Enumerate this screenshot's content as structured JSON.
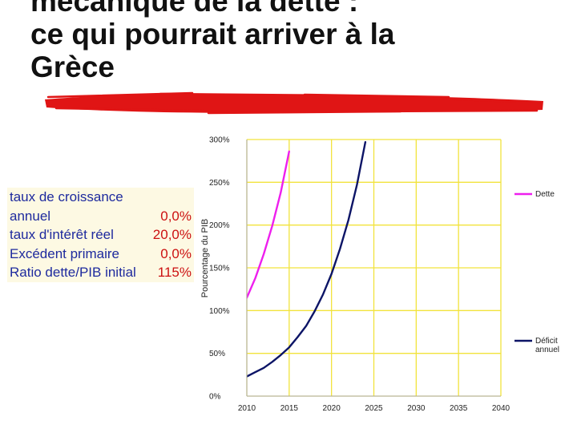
{
  "title": {
    "line1": "mécanique de la dette :",
    "line2": "ce qui pourrait arriver à la",
    "line3": "Grèce"
  },
  "colors": {
    "title": "#111111",
    "brush_stroke": "#e01515",
    "table_background": "#fdf9e3",
    "table_label": "#1e2a9e",
    "table_value": "#cc1111",
    "grid": "#f2e33c",
    "debt_series": "#ee1fee",
    "deficit_series": "#0c1466"
  },
  "parameters": [
    {
      "label_lines": [
        "taux de croissance",
        "annuel"
      ],
      "value": "0,0%"
    },
    {
      "label_lines": [
        "taux d'intérêt réel"
      ],
      "value": "20,0%"
    },
    {
      "label_lines": [
        "Excédent primaire"
      ],
      "value": "0,0%"
    },
    {
      "label_lines": [
        "Ratio dette/PIB initial"
      ],
      "value": "115%"
    }
  ],
  "chart_data": {
    "type": "line",
    "ylabel": "Pourcentage du PIB",
    "xlim": [
      2010,
      2040
    ],
    "ylim": [
      0,
      300
    ],
    "x_ticks": [
      2010,
      2015,
      2020,
      2025,
      2030,
      2035,
      2040
    ],
    "y_ticks": [
      0,
      50,
      100,
      150,
      200,
      250,
      300
    ],
    "y_tick_labels": [
      "0%",
      "50%",
      "100%",
      "150%",
      "200%",
      "250%",
      "300%"
    ],
    "grid": true,
    "legend_position": "right",
    "series": [
      {
        "name": "Dette",
        "color": "#ee1fee",
        "x": [
          2010,
          2011,
          2012,
          2013,
          2014,
          2015
        ],
        "y": [
          115,
          138,
          166,
          199,
          238,
          286
        ]
      },
      {
        "name": "Déficit annuel",
        "color": "#0c1466",
        "x": [
          2010,
          2011,
          2012,
          2013,
          2014,
          2015,
          2016,
          2017,
          2018,
          2019,
          2020,
          2021,
          2022,
          2023,
          2024
        ],
        "y": [
          23,
          28,
          33,
          40,
          48,
          57,
          69,
          82,
          99,
          119,
          143,
          172,
          206,
          247,
          297
        ]
      }
    ]
  }
}
